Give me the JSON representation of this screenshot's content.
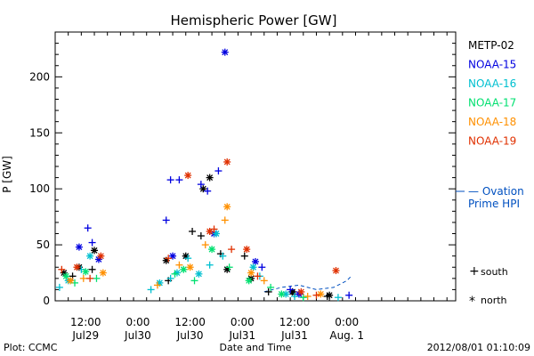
{
  "chart_data": {
    "type": "scatter",
    "title": "Hemispheric Power [GW]",
    "ylabel": "P [GW]",
    "xlabel": "Date and Time",
    "ylim": [
      0,
      240
    ],
    "xlim": [
      "2012-07-28T05:00",
      "2012-08-01T01:00"
    ],
    "yticks": [
      0,
      50,
      100,
      150,
      200
    ],
    "xticks": [
      {
        "t": "2012-07-28T12:00",
        "top": "12:00",
        "bottom": "Jul29"
      },
      {
        "t": "2012-07-29T00:00",
        "top": "0:00",
        "bottom": "Jul30"
      },
      {
        "t": "2012-07-29T12:00",
        "top": "12:00",
        "bottom": "Jul30"
      },
      {
        "t": "2012-07-30T00:00",
        "top": "0:00",
        "bottom": "Jul31"
      },
      {
        "t": "2012-07-30T12:00",
        "top": "12:00",
        "bottom": "Jul31"
      },
      {
        "t": "2012-07-31T00:00",
        "top": "0:00",
        "bottom": "Aug. 1"
      }
    ],
    "legend_placement": "right",
    "series": [
      {
        "name": "METP-02",
        "color": "#000000",
        "south": [
          [
            "2012-07-28T09:00",
            22
          ],
          [
            "2012-07-28T13:30",
            28
          ],
          [
            "2012-07-29T07:00",
            18
          ],
          [
            "2012-07-29T12:30",
            62
          ],
          [
            "2012-07-29T14:30",
            58
          ],
          [
            "2012-07-29T19:00",
            42
          ],
          [
            "2012-07-30T00:30",
            40
          ],
          [
            "2012-07-30T06:00",
            8
          ],
          [
            "2012-07-30T12:00",
            6
          ],
          [
            "2012-07-30T19:30",
            4
          ]
        ],
        "north": [
          [
            "2012-07-28T07:00",
            25
          ],
          [
            "2012-07-28T10:30",
            30
          ],
          [
            "2012-07-28T14:00",
            45
          ],
          [
            "2012-07-29T06:30",
            36
          ],
          [
            "2012-07-29T11:00",
            40
          ],
          [
            "2012-07-29T15:00",
            100
          ],
          [
            "2012-07-29T16:30",
            110
          ],
          [
            "2012-07-29T20:30",
            28
          ],
          [
            "2012-07-30T02:00",
            20
          ],
          [
            "2012-07-30T11:30",
            8
          ],
          [
            "2012-07-30T20:00",
            5
          ]
        ]
      },
      {
        "name": "NOAA-15",
        "color": "#0000e0",
        "south": [
          [
            "2012-07-28T12:30",
            65
          ],
          [
            "2012-07-28T13:30",
            52
          ],
          [
            "2012-07-29T06:30",
            72
          ],
          [
            "2012-07-29T07:30",
            108
          ],
          [
            "2012-07-29T09:30",
            108
          ],
          [
            "2012-07-29T14:30",
            104
          ],
          [
            "2012-07-29T16:00",
            98
          ],
          [
            "2012-07-29T18:30",
            116
          ],
          [
            "2012-07-30T04:30",
            30
          ],
          [
            "2012-07-30T11:00",
            10
          ],
          [
            "2012-07-31T00:30",
            5
          ]
        ],
        "north": [
          [
            "2012-07-28T10:30",
            48
          ],
          [
            "2012-07-28T15:00",
            37
          ],
          [
            "2012-07-29T08:00",
            40
          ],
          [
            "2012-07-29T17:30",
            60
          ],
          [
            "2012-07-29T20:00",
            222
          ],
          [
            "2012-07-30T03:00",
            35
          ],
          [
            "2012-07-30T13:00",
            6
          ]
        ]
      },
      {
        "name": "NOAA-16",
        "color": "#00c0d0",
        "south": [
          [
            "2012-07-28T06:00",
            12
          ],
          [
            "2012-07-28T11:00",
            28
          ],
          [
            "2012-07-29T03:00",
            10
          ],
          [
            "2012-07-29T07:30",
            20
          ],
          [
            "2012-07-29T11:30",
            38
          ],
          [
            "2012-07-29T16:30",
            32
          ],
          [
            "2012-07-29T19:30",
            40
          ],
          [
            "2012-07-30T04:00",
            22
          ],
          [
            "2012-07-30T12:00",
            4
          ],
          [
            "2012-07-30T22:00",
            3
          ]
        ],
        "north": [
          [
            "2012-07-28T08:00",
            18
          ],
          [
            "2012-07-28T13:00",
            40
          ],
          [
            "2012-07-29T05:00",
            16
          ],
          [
            "2012-07-29T09:00",
            25
          ],
          [
            "2012-07-29T14:00",
            24
          ],
          [
            "2012-07-29T18:00",
            60
          ],
          [
            "2012-07-30T02:30",
            30
          ],
          [
            "2012-07-30T10:00",
            6
          ]
        ]
      },
      {
        "name": "NOAA-17",
        "color": "#00e070",
        "south": [
          [
            "2012-07-28T09:30",
            16
          ],
          [
            "2012-07-28T14:30",
            20
          ],
          [
            "2012-07-29T08:30",
            24
          ],
          [
            "2012-07-29T13:00",
            18
          ],
          [
            "2012-07-29T21:00",
            30
          ],
          [
            "2012-07-30T06:30",
            12
          ],
          [
            "2012-07-30T14:00",
            3
          ]
        ],
        "north": [
          [
            "2012-07-28T07:30",
            22
          ],
          [
            "2012-07-28T12:00",
            26
          ],
          [
            "2012-07-29T10:30",
            28
          ],
          [
            "2012-07-29T17:00",
            46
          ],
          [
            "2012-07-30T01:30",
            18
          ],
          [
            "2012-07-30T09:00",
            6
          ]
        ]
      },
      {
        "name": "NOAA-18",
        "color": "#ff9000",
        "south": [
          [
            "2012-07-28T11:30",
            20
          ],
          [
            "2012-07-29T04:30",
            14
          ],
          [
            "2012-07-29T09:30",
            32
          ],
          [
            "2012-07-29T15:30",
            50
          ],
          [
            "2012-07-29T20:00",
            72
          ],
          [
            "2012-07-30T05:00",
            18
          ],
          [
            "2012-07-30T15:00",
            4
          ]
        ],
        "north": [
          [
            "2012-07-28T08:30",
            18
          ],
          [
            "2012-07-28T16:00",
            25
          ],
          [
            "2012-07-29T12:00",
            30
          ],
          [
            "2012-07-29T20:30",
            84
          ],
          [
            "2012-07-30T02:00",
            25
          ],
          [
            "2012-07-30T18:00",
            6
          ]
        ]
      },
      {
        "name": "NOAA-19",
        "color": "#e03000",
        "south": [
          [
            "2012-07-28T06:30",
            28
          ],
          [
            "2012-07-28T13:00",
            20
          ],
          [
            "2012-07-29T07:00",
            38
          ],
          [
            "2012-07-29T17:30",
            64
          ],
          [
            "2012-07-29T21:30",
            46
          ],
          [
            "2012-07-30T03:30",
            22
          ],
          [
            "2012-07-30T17:00",
            5
          ]
        ],
        "north": [
          [
            "2012-07-28T10:00",
            30
          ],
          [
            "2012-07-28T15:30",
            40
          ],
          [
            "2012-07-29T11:30",
            112
          ],
          [
            "2012-07-29T16:30",
            62
          ],
          [
            "2012-07-29T20:30",
            124
          ],
          [
            "2012-07-30T01:00",
            46
          ],
          [
            "2012-07-30T13:30",
            8
          ],
          [
            "2012-07-30T21:30",
            27
          ]
        ]
      }
    ],
    "ovation": {
      "label_line1": "— Ovation",
      "label_line2": "Prime HPI",
      "color": "#0050c0",
      "points": [
        [
          "2012-07-30T05:00",
          8
        ],
        [
          "2012-07-30T09:00",
          12
        ],
        [
          "2012-07-30T13:00",
          14
        ],
        [
          "2012-07-30T17:00",
          10
        ],
        [
          "2012-07-30T21:00",
          12
        ],
        [
          "2012-07-31T00:00",
          18
        ],
        [
          "2012-07-31T01:00",
          22
        ]
      ]
    },
    "symbol_key": {
      "south": "south",
      "north": "north"
    }
  },
  "footer": {
    "left": "Plot: CCMC",
    "center": "Date and Time",
    "right": "2012/08/01 01:10:09"
  }
}
